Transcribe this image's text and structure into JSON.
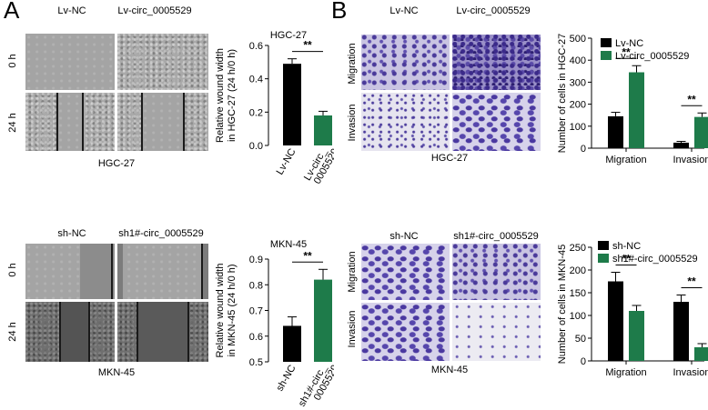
{
  "panelA": {
    "letter": "A",
    "top": {
      "col_labels": [
        "Lv-NC",
        "Lv-circ_0005529"
      ],
      "row_labels": [
        "0 h",
        "24 h"
      ],
      "cell_line": "HGC-27"
    },
    "bottom": {
      "col_labels": [
        "sh-NC",
        "sh1#-circ_0005529"
      ],
      "row_labels": [
        "0 h",
        "24 h"
      ],
      "cell_line": "MKN-45"
    }
  },
  "panelB": {
    "letter": "B",
    "top": {
      "col_labels": [
        "Lv-NC",
        "Lv-circ_0005529"
      ],
      "row_labels": [
        "Migration",
        "Invasion"
      ],
      "cell_line": "HGC-27"
    },
    "bottom": {
      "col_labels": [
        "sh-NC",
        "sh1#-circ_0005529"
      ],
      "row_labels": [
        "Migration",
        "Invasion"
      ],
      "cell_line": "MKN-45"
    }
  },
  "colors": {
    "black_bar": "#000000",
    "green_bar": "#1e7b4a"
  },
  "chart_data": [
    {
      "type": "bar",
      "title": "HGC-27",
      "ylabel": [
        "Relative wound width",
        "in HGC-27 (24 h/0 h)"
      ],
      "categories": [
        [
          "Lv-NC"
        ],
        [
          "Lv-circ_",
          "0005529"
        ]
      ],
      "values": [
        0.49,
        0.18
      ],
      "errors": [
        0.03,
        0.025
      ],
      "ylim": [
        0,
        0.6
      ],
      "yticks": [
        "0.0",
        "0.2",
        "0.4",
        "0.6"
      ],
      "significance": "**"
    },
    {
      "type": "bar",
      "title": "MKN-45",
      "ylabel": [
        "Relative wound width",
        "in MKN-45 (24 h/0 h)"
      ],
      "categories": [
        [
          "sh-NC"
        ],
        [
          "sh1#-circ_",
          "0005529"
        ]
      ],
      "values": [
        0.64,
        0.82
      ],
      "errors": [
        0.035,
        0.04
      ],
      "ylim": [
        0.5,
        0.9
      ],
      "yticks": [
        "0.5",
        "0.6",
        "0.7",
        "0.8",
        "0.9"
      ],
      "significance": "**"
    },
    {
      "type": "bar",
      "ylabel": [
        "Number of cells in HGC-27"
      ],
      "categories": [
        "Migration",
        "Invasion"
      ],
      "series": [
        {
          "name": "Lv-NC",
          "values": [
            145,
            25
          ],
          "errors": [
            18,
            6
          ]
        },
        {
          "name": "Lv-circ_0005529",
          "values": [
            345,
            142
          ],
          "errors": [
            30,
            18
          ]
        }
      ],
      "ylim": [
        0,
        500
      ],
      "yticks": [
        "0",
        "100",
        "200",
        "300",
        "400",
        "500"
      ],
      "significance": [
        "**",
        "**"
      ],
      "legend": "top-left"
    },
    {
      "type": "bar",
      "ylabel": [
        "Number of cells in MKN-45"
      ],
      "categories": [
        "Migration",
        "Invasion"
      ],
      "series": [
        {
          "name": "sh-NC",
          "values": [
            175,
            130
          ],
          "errors": [
            20,
            15
          ]
        },
        {
          "name": "sh1#-circ_0005529",
          "values": [
            110,
            30
          ],
          "errors": [
            12,
            8
          ]
        }
      ],
      "ylim": [
        0,
        250
      ],
      "yticks": [
        "0",
        "50",
        "100",
        "150",
        "200",
        "250"
      ],
      "significance": [
        "**",
        "**"
      ],
      "legend": "top-left"
    }
  ]
}
